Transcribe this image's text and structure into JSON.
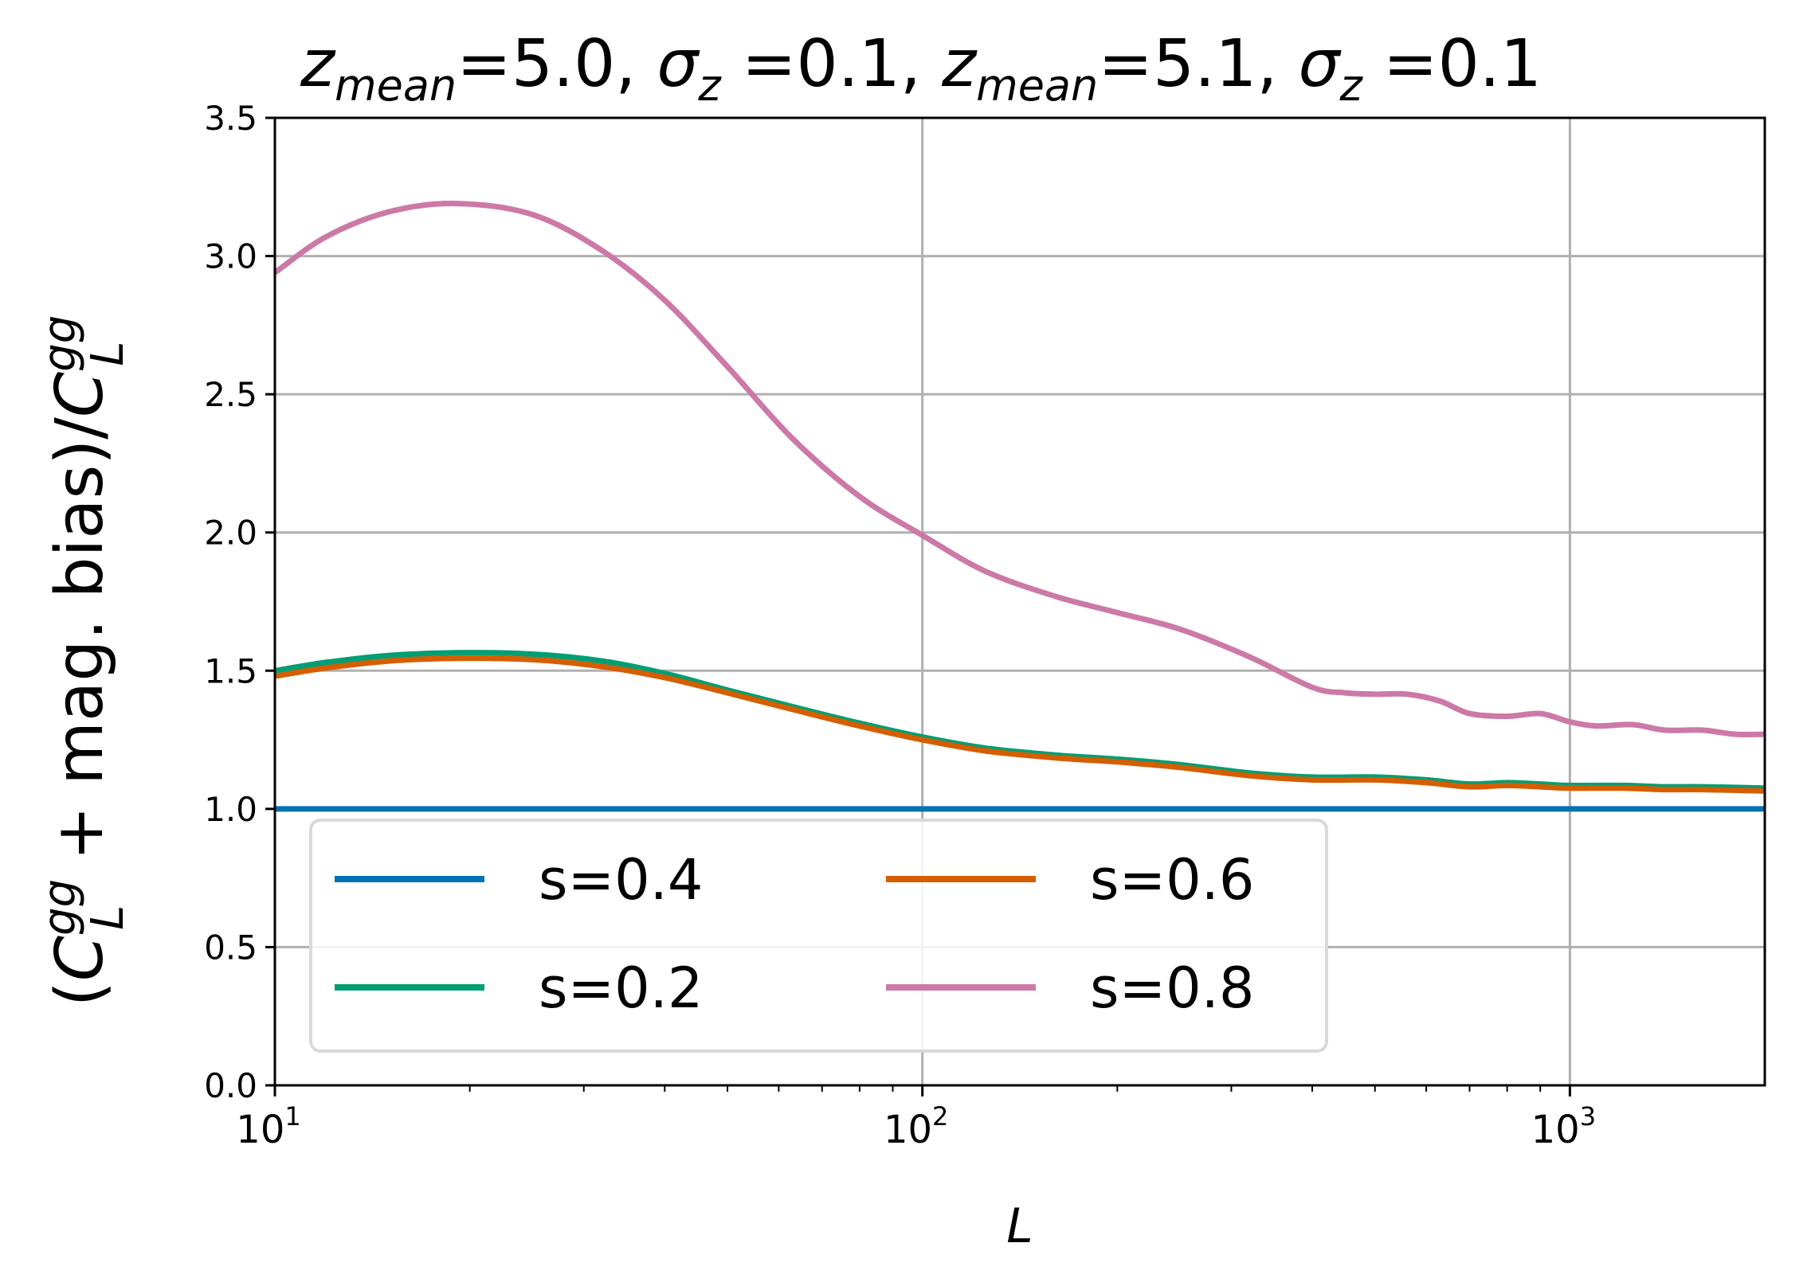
{
  "chart_data": {
    "type": "line",
    "title": "z_mean=5.0, σ_z =0.1, z_mean=5.1, σ_z =0.1",
    "title_parts": {
      "z": "z",
      "mean": "mean",
      "sigma": "σ",
      "sub_z": "z",
      "val1": "=5.0, ",
      "val2": " =0.1, ",
      "val3": "=5.1, ",
      "val4": " =0.1"
    },
    "xlabel": "L",
    "ylabel": "(C_L^gg + mag. bias)/C_L^gg",
    "ylabel_parts": {
      "open": "(",
      "C": "C",
      "sup": "gg",
      "sub": "L",
      "middle": " + mag. bias)/",
      "C2": "C"
    },
    "x_scale": "log",
    "xlim": [
      10,
      2000
    ],
    "ylim": [
      0.0,
      3.5
    ],
    "x_ticks": [
      {
        "value": 10,
        "base": "10",
        "exp": "1"
      },
      {
        "value": 100,
        "base": "10",
        "exp": "2"
      },
      {
        "value": 1000,
        "base": "10",
        "exp": "3"
      }
    ],
    "y_ticks": [
      {
        "value": 0.0,
        "label": "0.0"
      },
      {
        "value": 0.5,
        "label": "0.5"
      },
      {
        "value": 1.0,
        "label": "1.0"
      },
      {
        "value": 1.5,
        "label": "1.5"
      },
      {
        "value": 2.0,
        "label": "2.0"
      },
      {
        "value": 2.5,
        "label": "2.5"
      },
      {
        "value": 3.0,
        "label": "3.0"
      },
      {
        "value": 3.5,
        "label": "3.5"
      }
    ],
    "grid": true,
    "legend_position": "lower-left",
    "legend_columns": 2,
    "series": [
      {
        "name": "s=0.4",
        "color": "#0072b2",
        "x": [
          10,
          2000
        ],
        "y": [
          1.0,
          1.0
        ]
      },
      {
        "name": "s=0.2",
        "color": "#009e73",
        "x": [
          10,
          12,
          15,
          19,
          25,
          32,
          40,
          50,
          63,
          80,
          100,
          125,
          160,
          200,
          250,
          320,
          400,
          500,
          600,
          700,
          800,
          900,
          1000,
          1200,
          1400,
          1600,
          2000
        ],
        "y": [
          1.5,
          1.53,
          1.555,
          1.565,
          1.56,
          1.535,
          1.49,
          1.43,
          1.37,
          1.31,
          1.26,
          1.22,
          1.195,
          1.18,
          1.16,
          1.13,
          1.115,
          1.115,
          1.105,
          1.09,
          1.095,
          1.09,
          1.085,
          1.085,
          1.08,
          1.08,
          1.075
        ]
      },
      {
        "name": "s=0.6",
        "color": "#d55e00",
        "x": [
          10,
          12,
          15,
          19,
          25,
          32,
          40,
          50,
          63,
          80,
          100,
          125,
          160,
          200,
          250,
          320,
          400,
          500,
          600,
          700,
          800,
          900,
          1000,
          1200,
          1400,
          1600,
          2000
        ],
        "y": [
          1.48,
          1.51,
          1.535,
          1.545,
          1.54,
          1.515,
          1.475,
          1.42,
          1.36,
          1.3,
          1.25,
          1.21,
          1.185,
          1.17,
          1.15,
          1.12,
          1.105,
          1.105,
          1.095,
          1.08,
          1.085,
          1.08,
          1.075,
          1.075,
          1.07,
          1.07,
          1.065
        ]
      },
      {
        "name": "s=0.8",
        "color": "#cc79a7",
        "x": [
          10,
          12,
          15,
          19,
          25,
          32,
          40,
          50,
          63,
          80,
          100,
          125,
          160,
          200,
          250,
          320,
          400,
          450,
          500,
          560,
          630,
          700,
          800,
          900,
          1000,
          1100,
          1250,
          1400,
          1600,
          1800,
          2000
        ],
        "y": [
          2.94,
          3.07,
          3.16,
          3.19,
          3.15,
          3.02,
          2.84,
          2.6,
          2.34,
          2.13,
          1.99,
          1.86,
          1.77,
          1.71,
          1.65,
          1.55,
          1.44,
          1.42,
          1.415,
          1.415,
          1.39,
          1.345,
          1.335,
          1.345,
          1.315,
          1.3,
          1.305,
          1.285,
          1.285,
          1.27,
          1.27
        ]
      }
    ]
  }
}
